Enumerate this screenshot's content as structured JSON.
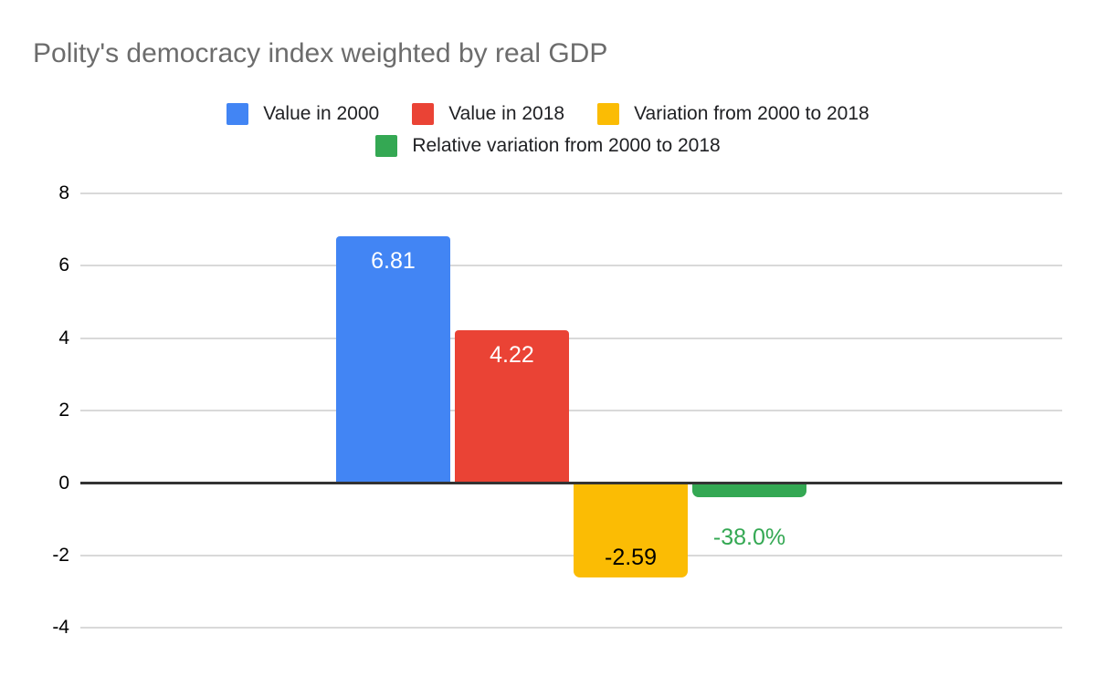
{
  "title": "Polity's democracy index weighted by real GDP",
  "colors": {
    "title_text": "#6c6c6c",
    "legend_text": "#202124",
    "tick_text": "#000000",
    "gridline": "#d9d9d9",
    "zero_line": "#333333",
    "background": "#ffffff",
    "blue": "#4285F4",
    "red": "#EA4335",
    "yellow": "#FBBC04",
    "green": "#34A853"
  },
  "legend": {
    "items": [
      {
        "label": "Value in 2000",
        "color": "#4285F4"
      },
      {
        "label": "Value in 2018",
        "color": "#EA4335"
      },
      {
        "label": "Variation from 2000 to 2018",
        "color": "#FBBC04"
      },
      {
        "label": "Relative variation from 2000 to 2018",
        "color": "#34A853"
      }
    ],
    "position": "top",
    "items_in_first_row": 3
  },
  "chart_data": {
    "type": "bar",
    "title": "Polity's democracy index weighted by real GDP",
    "categories": [
      "Value in 2000",
      "Value in 2018",
      "Variation from 2000 to 2018",
      "Relative variation from 2000 to 2018"
    ],
    "series": [
      {
        "name": "Value in 2000",
        "value": 6.81,
        "label": "6.81",
        "color": "#4285F4",
        "label_color": "#ffffff",
        "label_position": "inside-top"
      },
      {
        "name": "Value in 2018",
        "value": 4.22,
        "label": "4.22",
        "color": "#EA4335",
        "label_color": "#ffffff",
        "label_position": "inside-top"
      },
      {
        "name": "Variation from 2000 to 2018",
        "value": -2.59,
        "label": "-2.59",
        "color": "#FBBC04",
        "label_color": "#000000",
        "label_position": "inside-bottom"
      },
      {
        "name": "Relative variation from 2000 to 2018",
        "value": -0.38,
        "label": "-38.0%",
        "color": "#34A853",
        "label_color": "#34A853",
        "label_position": "below-outside"
      }
    ],
    "xlabel": "",
    "ylabel": "",
    "y_ticks": [
      8,
      6,
      4,
      2,
      0,
      -2,
      -4
    ],
    "y_tick_labels": [
      "8",
      "6",
      "4",
      "2",
      "0",
      "-2",
      "-4"
    ],
    "ylim": [
      -4.8,
      8.8
    ],
    "grid": true,
    "legend_position": "top",
    "zero_line": true
  }
}
